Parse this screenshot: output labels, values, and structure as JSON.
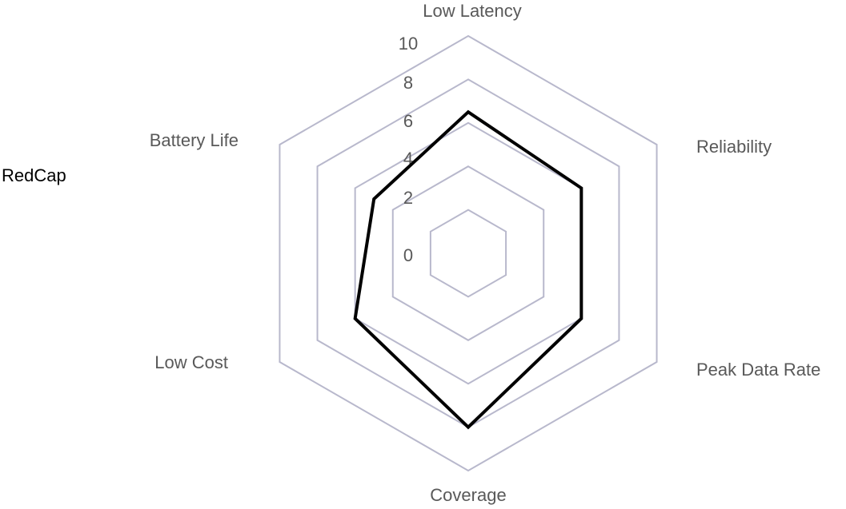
{
  "chart_data": {
    "type": "radar",
    "axes": [
      "Low Latency",
      "Reliability",
      "Peak Data Rate",
      "Coverage",
      "Low Cost",
      "Battery Life"
    ],
    "ticks": [
      "0",
      "2",
      "4",
      "6",
      "8",
      "10"
    ],
    "rlim": [
      0,
      10
    ],
    "grid": true,
    "series": [
      {
        "name": "RedCap",
        "values": [
          6.5,
          6.0,
          6.0,
          8.0,
          6.0,
          5.0
        ]
      }
    ],
    "colors": {
      "grid": "#b8b8cc",
      "series": "#000000",
      "labels": "#595959"
    }
  }
}
